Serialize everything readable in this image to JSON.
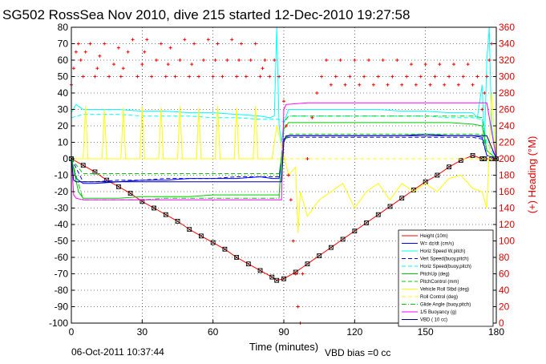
{
  "chart_data": {
    "type": "line",
    "title": "SG502 RossSea Nov 2010, dive 215 started 12-Dec-2010 19:27:58",
    "xlabel": "Time (minutes)",
    "ylabel_right": "(+) Heading (°M)",
    "xlim": [
      0,
      180
    ],
    "ylim": [
      -100,
      80
    ],
    "ylim_right": [
      0,
      360
    ],
    "x_ticks": [
      0,
      30,
      60,
      90,
      120,
      150,
      180
    ],
    "y_ticks": [
      -100,
      -90,
      -80,
      -70,
      -60,
      -50,
      -40,
      -30,
      -20,
      -10,
      0,
      10,
      20,
      30,
      40,
      50,
      60,
      70,
      80
    ],
    "y_ticks_right": [
      0,
      20,
      40,
      60,
      80,
      100,
      120,
      140,
      160,
      180,
      200,
      220,
      240,
      260,
      280,
      300,
      320,
      340,
      360
    ],
    "grid": true,
    "legend_position": "bottom-right",
    "footer_left": "06-Oct-2011 10:37:44",
    "footer_right": "VBD bias =0 cc",
    "series": [
      {
        "name": "Height (10m)",
        "color": "#ff0000",
        "style": "solid-marker",
        "x": [
          0,
          5,
          10,
          15,
          20,
          25,
          30,
          35,
          40,
          45,
          50,
          55,
          60,
          65,
          70,
          75,
          80,
          85,
          87,
          90,
          95,
          100,
          105,
          110,
          115,
          120,
          125,
          130,
          135,
          140,
          145,
          150,
          155,
          160,
          165,
          170,
          174,
          175,
          178,
          180
        ],
        "y": [
          0,
          -4,
          -8,
          -13,
          -17,
          -21,
          -26,
          -30,
          -34,
          -38,
          -43,
          -47,
          -51,
          -55,
          -60,
          -64,
          -68,
          -72,
          -74,
          -73,
          -69,
          -64,
          -59,
          -54,
          -49,
          -44,
          -39,
          -34,
          -29,
          -24,
          -19,
          -14,
          -10,
          -5,
          -1,
          2,
          0,
          0,
          0,
          0
        ]
      },
      {
        "name": "W= dz/dt (cm/s)",
        "color": "#0000ff",
        "style": "solid",
        "x": [
          0,
          2,
          5,
          10,
          20,
          30,
          40,
          50,
          60,
          70,
          80,
          85,
          88,
          90,
          92,
          100,
          110,
          120,
          130,
          140,
          150,
          160,
          170,
          174,
          176,
          180
        ],
        "y": [
          0,
          -12,
          -15,
          -15,
          -14,
          -13,
          -13,
          -12,
          -12,
          -12,
          -11,
          -12,
          -12,
          12,
          14,
          14,
          14,
          14,
          14,
          14,
          15,
          14,
          14,
          13,
          2,
          0
        ]
      },
      {
        "name": "Horiz Speed W,pitch)",
        "color": "#00ffff",
        "style": "solid",
        "x": [
          0,
          2,
          5,
          10,
          20,
          30,
          40,
          50,
          60,
          70,
          80,
          84,
          86,
          87,
          88,
          89,
          90,
          92,
          100,
          110,
          120,
          130,
          140,
          150,
          160,
          170,
          172,
          174,
          175,
          176,
          177,
          178,
          180
        ],
        "y": [
          28,
          33,
          30,
          30,
          30,
          29,
          29,
          28,
          28,
          27,
          26,
          25,
          26,
          80,
          20,
          10,
          22,
          30,
          30,
          30,
          30,
          30,
          29,
          29,
          28,
          28,
          25,
          45,
          10,
          60,
          80,
          20,
          0
        ]
      },
      {
        "name": "Vert Speed(buoy,pitch)",
        "color": "#0000ff",
        "style": "dashed",
        "x": [
          0,
          5,
          10,
          20,
          30,
          40,
          50,
          60,
          70,
          80,
          85,
          88,
          90,
          92,
          100,
          110,
          120,
          130,
          140,
          150,
          160,
          170,
          174,
          176,
          180
        ],
        "y": [
          0,
          -14,
          -14,
          -13,
          -13,
          -12,
          -12,
          -12,
          -11,
          -11,
          -11,
          -11,
          12,
          13,
          13,
          13,
          13,
          13,
          13,
          13,
          13,
          13,
          12,
          2,
          0
        ]
      },
      {
        "name": "Horiz Speed(buoy,pitch)",
        "color": "#00ffff",
        "style": "dashed",
        "x": [
          0,
          5,
          10,
          20,
          30,
          40,
          50,
          60,
          70,
          80,
          85,
          88,
          90,
          92,
          100,
          110,
          120,
          130,
          140,
          150,
          160,
          170,
          174,
          176,
          180
        ],
        "y": [
          25,
          27,
          27,
          27,
          26,
          26,
          26,
          25,
          25,
          24,
          24,
          24,
          22,
          26,
          26,
          26,
          26,
          26,
          26,
          26,
          25,
          25,
          24,
          10,
          0
        ]
      },
      {
        "name": "PitchUp (deg)",
        "color": "#00cc00",
        "style": "solid",
        "x": [
          0,
          3,
          5,
          10,
          20,
          30,
          40,
          50,
          60,
          70,
          80,
          85,
          88,
          90,
          92,
          100,
          110,
          120,
          130,
          140,
          150,
          160,
          170,
          174,
          176,
          180
        ],
        "y": [
          0,
          -20,
          -24,
          -24,
          -24,
          -23,
          -23,
          -23,
          -22,
          -22,
          -22,
          -22,
          -22,
          18,
          22,
          22,
          22,
          22,
          22,
          22,
          22,
          22,
          21,
          20,
          5,
          0
        ]
      },
      {
        "name": "PitchControl (mm)",
        "color": "#00cc00",
        "style": "dashed",
        "x": [
          0,
          5,
          10,
          20,
          30,
          40,
          50,
          60,
          70,
          80,
          85,
          88,
          90,
          92,
          100,
          110,
          120,
          130,
          140,
          150,
          160,
          170,
          174,
          176,
          180
        ],
        "y": [
          0,
          -9,
          -9,
          -9,
          -9,
          -9,
          -9,
          -9,
          -9,
          -9,
          -9,
          -9,
          10,
          15,
          15,
          15,
          15,
          15,
          15,
          15,
          15,
          15,
          15,
          5,
          0
        ]
      },
      {
        "name": "Vehicle Roll Stbd (deg)",
        "color": "#ffff00",
        "style": "solid",
        "x": [
          0,
          3,
          5,
          6,
          7,
          10,
          13,
          14,
          15,
          18,
          21,
          22,
          23,
          26,
          29,
          30,
          31,
          34,
          37,
          38,
          39,
          42,
          45,
          46,
          47,
          50,
          53,
          54,
          55,
          58,
          61,
          62,
          63,
          66,
          69,
          70,
          71,
          74,
          77,
          78,
          79,
          82,
          85,
          87,
          90,
          92,
          95,
          96,
          97,
          100,
          105,
          110,
          115,
          120,
          125,
          130,
          135,
          140,
          145,
          150,
          155,
          160,
          165,
          170,
          174,
          176,
          178,
          180
        ],
        "y": [
          0,
          0,
          0,
          32,
          0,
          0,
          0,
          30,
          0,
          0,
          0,
          31,
          0,
          0,
          0,
          32,
          0,
          0,
          0,
          31,
          0,
          0,
          0,
          32,
          0,
          0,
          0,
          31,
          0,
          0,
          0,
          32,
          0,
          0,
          0,
          31,
          0,
          0,
          0,
          32,
          0,
          0,
          0,
          20,
          2,
          -10,
          -5,
          -45,
          -20,
          -35,
          -25,
          -20,
          -15,
          -30,
          -20,
          -15,
          -25,
          -15,
          -20,
          -15,
          -20,
          -12,
          -10,
          -18,
          -20,
          -30,
          40,
          0
        ]
      },
      {
        "name": "Roll Control (deg)",
        "color": "#ffff00",
        "style": "dashed",
        "x": [
          0,
          10,
          20,
          30,
          40,
          50,
          60,
          70,
          80,
          85,
          88,
          90,
          92,
          100,
          110,
          120,
          130,
          140,
          150,
          160,
          170,
          174,
          176,
          180
        ],
        "y": [
          0,
          0,
          0,
          0,
          0,
          0,
          0,
          0,
          0,
          0,
          0,
          0,
          0,
          0,
          0,
          0,
          0,
          0,
          0,
          0,
          0,
          0,
          0,
          0
        ]
      },
      {
        "name": "Glide Angle (buoy,pitch)",
        "color": "#00cc00",
        "style": "dashdot",
        "x": [
          0,
          5,
          10,
          20,
          30,
          40,
          50,
          60,
          70,
          80,
          85,
          88,
          90,
          92,
          100,
          110,
          120,
          130,
          140,
          150,
          160,
          170,
          174,
          176,
          180
        ],
        "y": [
          0,
          -25,
          -25,
          -25,
          -25,
          -24,
          -24,
          -24,
          -24,
          -24,
          -24,
          -24,
          22,
          26,
          26,
          26,
          26,
          26,
          26,
          26,
          26,
          26,
          25,
          5,
          0
        ]
      },
      {
        "name": "1/5 Buoyancy (g)",
        "color": "#ff00ff",
        "style": "solid",
        "x": [
          0,
          1,
          2,
          5,
          10,
          20,
          30,
          40,
          50,
          60,
          70,
          80,
          85,
          88,
          89,
          90,
          91,
          100,
          110,
          120,
          130,
          140,
          150,
          160,
          170,
          175,
          176,
          180
        ],
        "y": [
          0,
          -22,
          -24,
          -25,
          -25,
          -25,
          -25,
          -25,
          -25,
          -25,
          -25,
          -25,
          -25,
          -25,
          -25,
          30,
          33,
          34,
          34,
          34,
          34,
          34,
          34,
          34,
          34,
          34,
          34,
          0
        ]
      },
      {
        "name": "VBD ( 10 cc)",
        "color": "#000080",
        "style": "solid",
        "x": [
          0,
          1,
          2,
          5,
          10,
          20,
          30,
          40,
          50,
          60,
          70,
          80,
          85,
          88,
          89,
          90,
          91,
          100,
          110,
          120,
          130,
          140,
          150,
          160,
          170,
          175,
          176,
          180
        ],
        "y": [
          0,
          -13,
          -14,
          -14,
          -14,
          -14,
          -14,
          -14,
          -14,
          -14,
          -14,
          -14,
          -14,
          -14,
          -14,
          10,
          14,
          14,
          14,
          14,
          14,
          14,
          14,
          14,
          14,
          14,
          14,
          0
        ]
      }
    ],
    "heading_series": {
      "name": "Heading (+)",
      "color": "#ff0000",
      "axis": "right",
      "marker": "+",
      "x": [
        0,
        1,
        2,
        3,
        4,
        5,
        6,
        8,
        10,
        11,
        12,
        14,
        16,
        18,
        20,
        21,
        22,
        24,
        26,
        28,
        30,
        31,
        32,
        34,
        36,
        38,
        40,
        41,
        42,
        44,
        46,
        48,
        50,
        51,
        52,
        54,
        56,
        58,
        60,
        61,
        62,
        64,
        66,
        68,
        70,
        71,
        72,
        74,
        76,
        78,
        80,
        81,
        82,
        84,
        86,
        88,
        90,
        91,
        92,
        93,
        94,
        95,
        96,
        97,
        98,
        100,
        102,
        104,
        106,
        108,
        110,
        112,
        114,
        116,
        118,
        120,
        122,
        124,
        126,
        128,
        130,
        132,
        134,
        136,
        138,
        140,
        142,
        144,
        146,
        148,
        150,
        152,
        154,
        156,
        158,
        160,
        162,
        164,
        166,
        168,
        170,
        172,
        174,
        175,
        176,
        177,
        178,
        179,
        180
      ],
      "y": [
        290,
        310,
        330,
        340,
        320,
        300,
        330,
        340,
        300,
        310,
        325,
        340,
        300,
        315,
        335,
        300,
        310,
        330,
        345,
        300,
        315,
        330,
        345,
        300,
        320,
        340,
        300,
        315,
        335,
        300,
        320,
        345,
        300,
        315,
        340,
        300,
        320,
        345,
        300,
        320,
        340,
        300,
        320,
        345,
        300,
        320,
        340,
        300,
        320,
        340,
        300,
        310,
        320,
        300,
        320,
        300,
        270,
        240,
        180,
        150,
        100,
        60,
        20,
        0,
        60,
        200,
        250,
        280,
        300,
        320,
        290,
        300,
        320,
        290,
        300,
        320,
        290,
        300,
        320,
        290,
        300,
        320,
        290,
        300,
        320,
        290,
        300,
        315,
        290,
        300,
        315,
        290,
        300,
        315,
        290,
        300,
        315,
        290,
        300,
        315,
        290,
        300,
        260,
        280,
        300,
        320,
        340,
        200,
        200
      ]
    }
  }
}
